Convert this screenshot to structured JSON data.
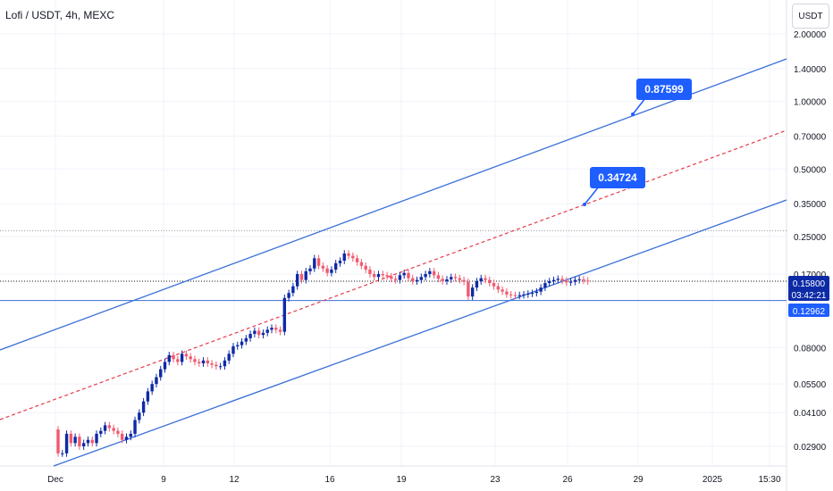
{
  "header": {
    "title": "Lofi / USDT, 4h, MEXC",
    "currency": "USDT"
  },
  "price_tags": {
    "current": "0.15800",
    "countdown": "03:42:21",
    "level": "0.12962"
  },
  "callouts": {
    "upper": "0.87599",
    "middle": "0.34724"
  },
  "colors": {
    "up": "#0d2aa6",
    "down": "#f05a6e",
    "line": "#3a6fd8",
    "dashed": "#e5394a",
    "tag": "#1e5eff"
  },
  "chart_data": {
    "type": "candlestick",
    "title": "Lofi / USDT, 4h, MEXC",
    "scale": "log",
    "ylim": [
      0.0245,
      2.0
    ],
    "yticks": [
      "2.00000",
      "1.40000",
      "1.00000",
      "0.70000",
      "0.50000",
      "0.35000",
      "0.25000",
      "0.17000",
      "0.08000",
      "0.05500",
      "0.04100",
      "0.02900"
    ],
    "xticks": [
      "Dec",
      "9",
      "12",
      "16",
      "19",
      "23",
      "26",
      "29",
      "2025",
      "15:30"
    ],
    "horizontal_levels": [
      0.2655,
      0.158,
      0.12962
    ],
    "callouts": [
      0.87599,
      0.34724
    ],
    "close": [
      0.027,
      0.027,
      0.033,
      0.03,
      0.032,
      0.029,
      0.03,
      0.031,
      0.03,
      0.033,
      0.034,
      0.036,
      0.035,
      0.034,
      0.033,
      0.031,
      0.032,
      0.033,
      0.038,
      0.041,
      0.046,
      0.051,
      0.055,
      0.059,
      0.064,
      0.069,
      0.074,
      0.071,
      0.069,
      0.075,
      0.073,
      0.071,
      0.069,
      0.068,
      0.07,
      0.068,
      0.067,
      0.066,
      0.066,
      0.07,
      0.075,
      0.081,
      0.082,
      0.085,
      0.088,
      0.092,
      0.095,
      0.091,
      0.093,
      0.096,
      0.098,
      0.096,
      0.094,
      0.133,
      0.14,
      0.15,
      0.17,
      0.16,
      0.175,
      0.18,
      0.2,
      0.185,
      0.18,
      0.172,
      0.178,
      0.19,
      0.195,
      0.21,
      0.205,
      0.2,
      0.192,
      0.185,
      0.178,
      0.17,
      0.165,
      0.17,
      0.168,
      0.166,
      0.162,
      0.16,
      0.168,
      0.172,
      0.163,
      0.158,
      0.16,
      0.165,
      0.17,
      0.175,
      0.168,
      0.162,
      0.158,
      0.161,
      0.165,
      0.163,
      0.16,
      0.157,
      0.135,
      0.148,
      0.158,
      0.163,
      0.16,
      0.155,
      0.15,
      0.145,
      0.142,
      0.138,
      0.137,
      0.136,
      0.137,
      0.138,
      0.139,
      0.14,
      0.142,
      0.148,
      0.155,
      0.158,
      0.16,
      0.162,
      0.159,
      0.156,
      0.157,
      0.16,
      0.161,
      0.159,
      0.158
    ]
  }
}
